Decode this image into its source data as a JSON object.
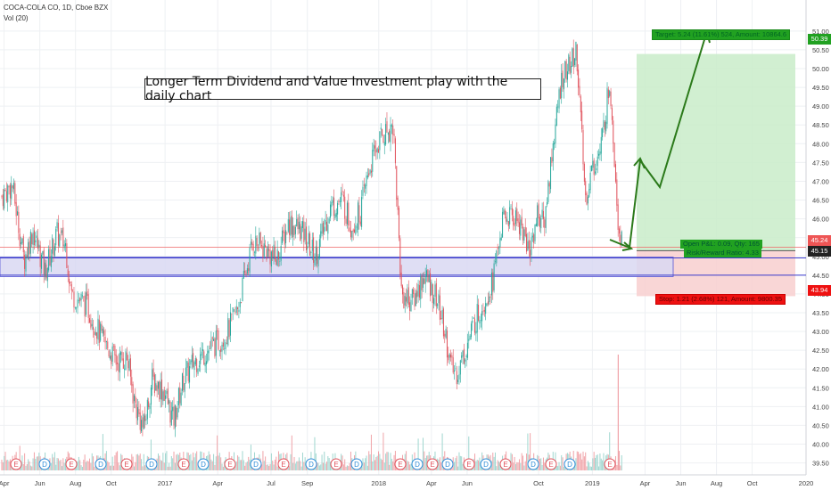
{
  "header": {
    "symbol_line": "COCA-COLA CO, 1D, Cboe BZX",
    "volume_line": "Vol (20)"
  },
  "annotation": "Longer Term Dividend and Value Investment play with the daily chart",
  "position_tool": {
    "target_label": "Target: 5.24 (11.61%) 524, Amount: 10864.6",
    "stop_label": "Stop: 1.21 (2.68%) 121, Amount: 9800.35",
    "center_line1": "Open P&L: 0.09, Qty: 165",
    "center_line2": "Risk/Reward Ratio: 4.33",
    "colors": {
      "target_fill": "#c9ecc9",
      "stop_fill": "#f8cfcf",
      "target_tag": "#21a121",
      "stop_tag": "#ee1111"
    }
  },
  "price_labels": {
    "target": "50.39",
    "current": "45.24",
    "entry": "45.15",
    "stop": "43.94"
  },
  "earnings_marker": "E",
  "dividend_marker": "D",
  "chart_data": {
    "type": "candlestick",
    "title": "COCA-COLA CO, 1D, Cboe BZX",
    "y_ticks": [
      "51.00",
      "50.50",
      "50.00",
      "49.50",
      "49.00",
      "48.50",
      "48.00",
      "47.50",
      "47.00",
      "46.50",
      "46.00",
      "45.50",
      "45.00",
      "44.50",
      "44.00",
      "43.50",
      "43.00",
      "42.50",
      "42.00",
      "41.50",
      "41.00",
      "40.50",
      "40.00",
      "39.50"
    ],
    "x_ticks": [
      "Apr",
      "Jun",
      "Aug",
      "Oct",
      "2017",
      "Apr",
      "Jul",
      "Sep",
      "2018",
      "Apr",
      "Jun",
      "Oct",
      "2019",
      "Apr",
      "Jun",
      "Aug",
      "Oct",
      "2020"
    ],
    "ylim": [
      39.3,
      51.4
    ],
    "close_path": [
      {
        "date": "2016-03-28",
        "close": 46.6
      },
      {
        "date": "2016-04-15",
        "close": 46.9
      },
      {
        "date": "2016-05-05",
        "close": 44.9
      },
      {
        "date": "2016-05-20",
        "close": 45.7
      },
      {
        "date": "2016-06-10",
        "close": 44.6
      },
      {
        "date": "2016-06-30",
        "close": 45.6
      },
      {
        "date": "2016-07-15",
        "close": 45.3
      },
      {
        "date": "2016-07-25",
        "close": 44.0
      },
      {
        "date": "2016-08-20",
        "close": 43.7
      },
      {
        "date": "2016-09-15",
        "close": 42.8
      },
      {
        "date": "2016-10-10",
        "close": 42.2
      },
      {
        "date": "2016-10-28",
        "close": 42.3
      },
      {
        "date": "2016-11-10",
        "close": 41.1
      },
      {
        "date": "2016-11-25",
        "close": 40.4
      },
      {
        "date": "2016-12-10",
        "close": 41.7
      },
      {
        "date": "2016-12-31",
        "close": 41.4
      },
      {
        "date": "2017-01-15",
        "close": 40.6
      },
      {
        "date": "2017-02-01",
        "close": 41.7
      },
      {
        "date": "2017-02-20",
        "close": 42.2
      },
      {
        "date": "2017-03-15",
        "close": 42.5
      },
      {
        "date": "2017-04-15",
        "close": 42.9
      },
      {
        "date": "2017-05-05",
        "close": 43.6
      },
      {
        "date": "2017-05-31",
        "close": 45.4
      },
      {
        "date": "2017-06-20",
        "close": 45.2
      },
      {
        "date": "2017-07-10",
        "close": 44.9
      },
      {
        "date": "2017-07-31",
        "close": 45.9
      },
      {
        "date": "2017-08-20",
        "close": 45.7
      },
      {
        "date": "2017-09-15",
        "close": 45.0
      },
      {
        "date": "2017-10-10",
        "close": 46.3
      },
      {
        "date": "2017-10-31",
        "close": 46.5
      },
      {
        "date": "2017-11-15",
        "close": 45.8
      },
      {
        "date": "2017-12-01",
        "close": 46.2
      },
      {
        "date": "2017-12-15",
        "close": 47.3
      },
      {
        "date": "2018-01-05",
        "close": 48.2
      },
      {
        "date": "2018-01-26",
        "close": 48.5
      },
      {
        "date": "2018-02-09",
        "close": 44.0
      },
      {
        "date": "2018-02-28",
        "close": 43.8
      },
      {
        "date": "2018-03-20",
        "close": 44.5
      },
      {
        "date": "2018-04-10",
        "close": 43.9
      },
      {
        "date": "2018-04-25",
        "close": 42.9
      },
      {
        "date": "2018-05-05",
        "close": 42.0
      },
      {
        "date": "2018-05-15",
        "close": 41.9
      },
      {
        "date": "2018-05-31",
        "close": 42.6
      },
      {
        "date": "2018-06-15",
        "close": 43.3
      },
      {
        "date": "2018-06-30",
        "close": 43.8
      },
      {
        "date": "2018-07-15",
        "close": 44.4
      },
      {
        "date": "2018-07-31",
        "close": 45.9
      },
      {
        "date": "2018-08-15",
        "close": 46.1
      },
      {
        "date": "2018-08-31",
        "close": 45.9
      },
      {
        "date": "2018-09-15",
        "close": 45.1
      },
      {
        "date": "2018-09-30",
        "close": 46.2
      },
      {
        "date": "2018-10-10",
        "close": 45.8
      },
      {
        "date": "2018-10-25",
        "close": 47.9
      },
      {
        "date": "2018-11-10",
        "close": 49.8
      },
      {
        "date": "2018-11-25",
        "close": 50.1
      },
      {
        "date": "2018-12-05",
        "close": 50.5
      },
      {
        "date": "2018-12-20",
        "close": 46.5
      },
      {
        "date": "2018-12-31",
        "close": 47.3
      },
      {
        "date": "2019-01-15",
        "close": 47.8
      },
      {
        "date": "2019-01-31",
        "close": 49.7
      },
      {
        "date": "2019-02-14",
        "close": 46.0
      },
      {
        "date": "2019-02-22",
        "close": 45.2
      }
    ],
    "highs_lows": {
      "max_high": 50.85,
      "min_low": 39.9
    }
  }
}
